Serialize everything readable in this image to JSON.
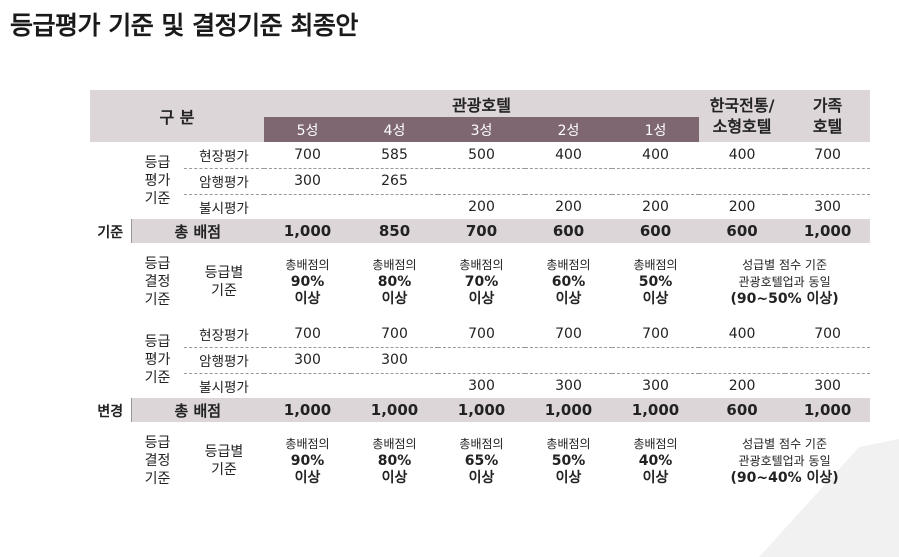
{
  "title": "등급평가 기준 및 결정기준 최종안",
  "header": {
    "category": "구 분",
    "tourist_hotel": "관광호텔",
    "grades": [
      "5성",
      "4성",
      "3성",
      "2성",
      "1성"
    ],
    "korean_small_l1": "한국전통/",
    "korean_small_l2": "소형호텔",
    "family_l1": "가족",
    "family_l2": "호텔"
  },
  "sections": [
    {
      "label": "기준",
      "eval_l1": "등급",
      "eval_l2": "평가",
      "eval_l3": "기준",
      "rows": [
        {
          "item": "현장평가",
          "values": [
            "700",
            "585",
            "500",
            "400",
            "400",
            "400",
            "700"
          ]
        },
        {
          "item": "암행평가",
          "values": [
            "300",
            "265",
            "",
            "",
            "",
            "",
            ""
          ]
        },
        {
          "item": "불시평가",
          "values": [
            "",
            "",
            "200",
            "200",
            "200",
            "200",
            "300"
          ]
        }
      ],
      "total_label": "총 배점",
      "totals": [
        "1,000",
        "850",
        "700",
        "600",
        "600",
        "600",
        "1,000"
      ],
      "decision_l1": "등급",
      "decision_l2": "결정",
      "decision_l3": "기준",
      "grade_item_l1": "등급별",
      "grade_item_l2": "기준",
      "criteria": [
        {
          "l1": "총배점의",
          "l2": "90%",
          "l3": "이상"
        },
        {
          "l1": "총배점의",
          "l2": "80%",
          "l3": "이상"
        },
        {
          "l1": "총배점의",
          "l2": "70%",
          "l3": "이상"
        },
        {
          "l1": "총배점의",
          "l2": "60%",
          "l3": "이상"
        },
        {
          "l1": "총배점의",
          "l2": "50%",
          "l3": "이상"
        }
      ],
      "merged_l1": "성급별 점수 기준",
      "merged_l2": "관광호텔업과 동일",
      "merged_l3": "(90~50% 이상)"
    },
    {
      "label": "변경",
      "eval_l1": "등급",
      "eval_l2": "평가",
      "eval_l3": "기준",
      "rows": [
        {
          "item": "현장평가",
          "values": [
            "700",
            "700",
            "700",
            "700",
            "700",
            "400",
            "700"
          ]
        },
        {
          "item": "암행평가",
          "values": [
            "300",
            "300",
            "",
            "",
            "",
            "",
            ""
          ]
        },
        {
          "item": "불시평가",
          "values": [
            "",
            "",
            "300",
            "300",
            "300",
            "200",
            "300"
          ]
        }
      ],
      "total_label": "총 배점",
      "totals": [
        "1,000",
        "1,000",
        "1,000",
        "1,000",
        "1,000",
        "600",
        "1,000"
      ],
      "decision_l1": "등급",
      "decision_l2": "결정",
      "decision_l3": "기준",
      "grade_item_l1": "등급별",
      "grade_item_l2": "기준",
      "criteria": [
        {
          "l1": "총배점의",
          "l2": "90%",
          "l3": "이상"
        },
        {
          "l1": "총배점의",
          "l2": "80%",
          "l3": "이상"
        },
        {
          "l1": "총배점의",
          "l2": "65%",
          "l3": "이상"
        },
        {
          "l1": "총배점의",
          "l2": "50%",
          "l3": "이상"
        },
        {
          "l1": "총배점의",
          "l2": "40%",
          "l3": "이상"
        }
      ],
      "merged_l1": "성급별 점수 기준",
      "merged_l2": "관광호텔업과 동일",
      "merged_l3": "(90~40% 이상)"
    }
  ],
  "colors": {
    "header_light": "#ddd6d9",
    "header_dark": "#7e6771",
    "total_row": "#ddd6d9"
  }
}
